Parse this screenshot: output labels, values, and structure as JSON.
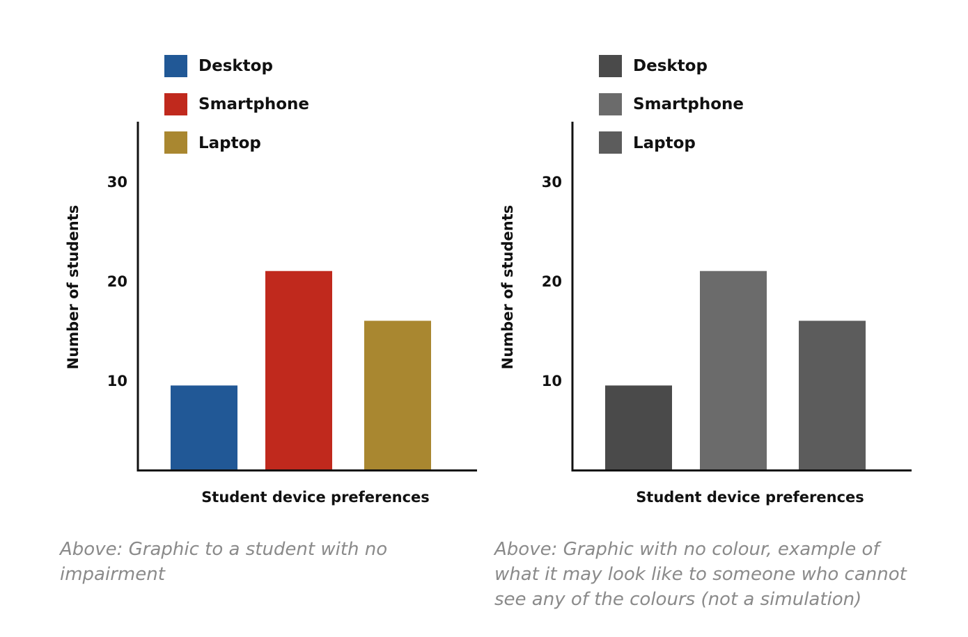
{
  "chart_data": [
    {
      "type": "bar",
      "categories": [
        "Desktop",
        "Smartphone",
        "Laptop"
      ],
      "values": [
        9.5,
        21,
        16
      ],
      "colors": [
        "#215896",
        "#c0291d",
        "#a98730"
      ],
      "legend": [
        "Desktop",
        "Smartphone",
        "Laptop"
      ],
      "legend_placement": "top-left",
      "xlabel": "Student device preferences",
      "ylabel": "Number of students",
      "yticks": [
        "10",
        "20",
        "30"
      ],
      "ytick_values": [
        10,
        20,
        30
      ],
      "ylim": [
        1,
        36
      ],
      "grid": false,
      "caption": "Above: Graphic to a student with no impairment"
    },
    {
      "type": "bar",
      "categories": [
        "Desktop",
        "Smartphone",
        "Laptop"
      ],
      "values": [
        9.5,
        21,
        16
      ],
      "colors": [
        "#4a4a4a",
        "#6b6b6b",
        "#5c5c5c"
      ],
      "legend": [
        "Desktop",
        "Smartphone",
        "Laptop"
      ],
      "legend_placement": "top-left",
      "xlabel": "Student device preferences",
      "ylabel": "Number of students",
      "yticks": [
        "10",
        "20",
        "30"
      ],
      "ytick_values": [
        10,
        20,
        30
      ],
      "ylim": [
        1,
        36
      ],
      "grid": false,
      "caption": "Above: Graphic with no colour, example of what it may look like to someone who cannot see any of the colours (not a simulation)"
    }
  ]
}
